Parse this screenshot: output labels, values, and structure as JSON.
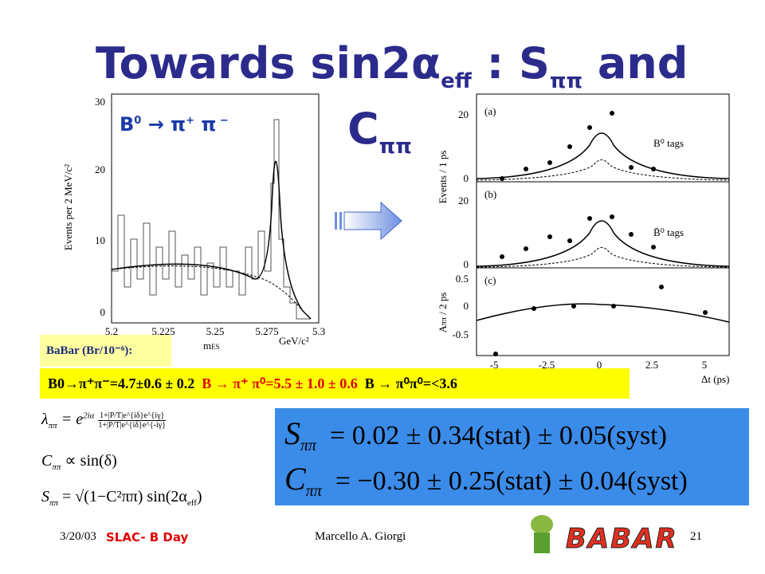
{
  "header": {
    "title": {
      "main": "Towards sin2",
      "alpha": "α",
      "alpha_sub": "eff",
      "colon": " : S",
      "s_sub": "ππ",
      "and": " and",
      "c": "C",
      "c_sub": "ππ"
    }
  },
  "mass_plot": {
    "decay_label": {
      "b": "B",
      "b_sup": "0",
      "arrow": " → π",
      "plus": "+",
      "pi": " π",
      "minus": " −"
    },
    "y_label": "Events per 2 MeV/c²",
    "yticks": [
      "0",
      "10",
      "20",
      "30"
    ],
    "xticks": [
      "5.2",
      "5.225",
      "5.25",
      "5.275",
      "5.3"
    ],
    "x_label": "m",
    "x_label_sub": "ES",
    "x_unit": "GeV/c²"
  },
  "dt_plot": {
    "panels": [
      {
        "tag": "(a)",
        "legend": "B⁰ tags",
        "y_label": "Events / 1 ps",
        "yticks": [
          "0",
          "20"
        ]
      },
      {
        "tag": "(b)",
        "legend": "B̄⁰ tags",
        "yticks": [
          "0",
          "20"
        ]
      },
      {
        "tag": "(c)",
        "y_label": "A",
        "y_label_sub": "ππ",
        "y_label_rest": " / 2 ps",
        "yticks": [
          "-0.5",
          "0",
          "0.5"
        ]
      }
    ],
    "xticks": [
      "-5",
      "-2.5",
      "0",
      "2.5",
      "5"
    ],
    "x_label": "Δt (ps)"
  },
  "branching": {
    "label": "BaBar (Br/10⁻⁶):",
    "pipi": "B0→π⁺π⁻=4.7±0.6 ± 0.2",
    "pipi0": "B → π⁺ π⁰=5.5 ± 1.0 ± 0.6",
    "pi0pi0": "B → π⁰π⁰=<3.6"
  },
  "formulas": {
    "lambda": "λ",
    "lambda_sub": "ππ",
    "lambda_rhs": "= e",
    "lambda_exp": "2iα",
    "lambda_num": "1+|P/T|e^{iδ}e^{iγ}",
    "lambda_den": "1+|P/T|e^{iδ}e^{-iγ}",
    "c": "C",
    "c_sub": "ππ",
    "c_rhs": "∝ sin(δ)",
    "s": "S",
    "s_sub": "ππ",
    "s_rhs": "= √(1−C²ππ) sin(2α",
    "s_eff": "eff",
    "s_close": ")"
  },
  "results": {
    "s_name": "S",
    "s_sub": "ππ",
    "s_text": "= 0.02 ± 0.34(stat) ± 0.05(syst)",
    "c_name": "C",
    "c_sub": "ππ",
    "c_text": "= −0.30 ± 0.25(stat) ± 0.04(syst)"
  },
  "footer": {
    "date": "3/20/03",
    "event": "SLAC- B Day",
    "author": "Marcello A. Giorgi",
    "page": "21",
    "logo": "BABAR"
  }
}
